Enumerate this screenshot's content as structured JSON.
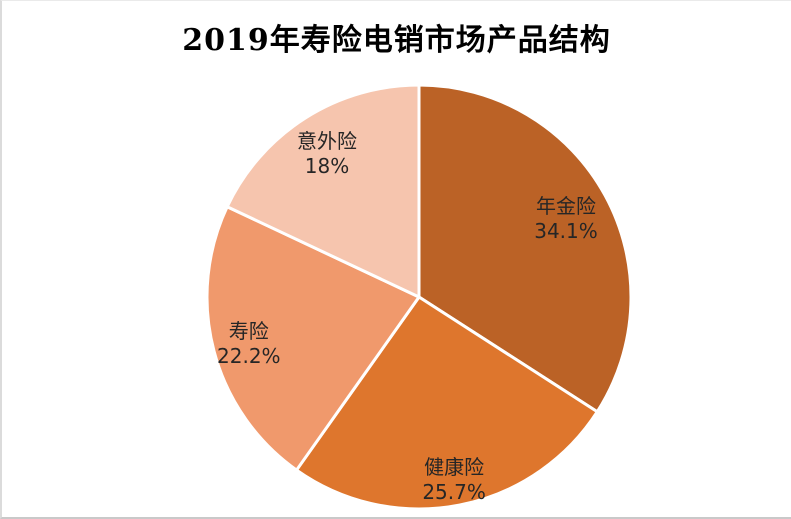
{
  "page": {
    "background": "#FFFFFF",
    "edge_line_bottom": "#C9C9C9",
    "edge_line_left": "#DBDBDB",
    "edge_line_top": "#EAEAEA"
  },
  "chart_data": {
    "type": "pie",
    "title": "2019年寿险电销市场产品结构",
    "title_color": "#000000",
    "legend": "none",
    "label_position": "inside",
    "label_color": "#262626",
    "separator_color": "#FFFFFF",
    "start_angle_deg": 0,
    "direction": "clockwise",
    "slices": [
      {
        "label": "年金险",
        "value": 34.1,
        "display": "34.1%",
        "color": "#BB6226",
        "label_radius": 0.79
      },
      {
        "label": "健康险",
        "value": 25.7,
        "display": "25.7%",
        "color": "#DE762D",
        "label_radius": 0.87
      },
      {
        "label": "寿险",
        "value": 22.2,
        "display": "22.2%",
        "color": "#F0996C",
        "label_radius": 0.83
      },
      {
        "label": "意外险",
        "value": 18,
        "display": "18%",
        "color": "#F6C5AE",
        "label_radius": 0.81
      }
    ]
  }
}
